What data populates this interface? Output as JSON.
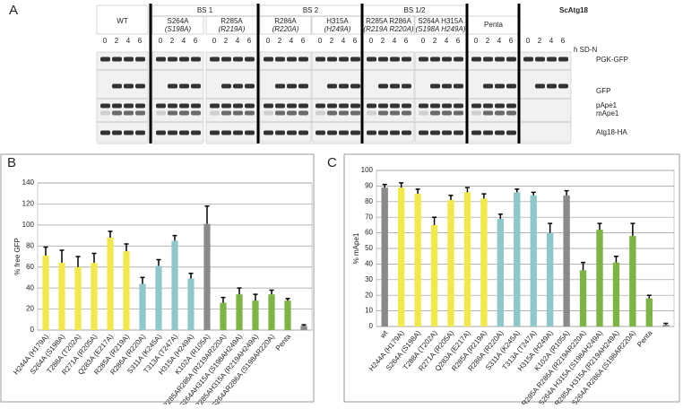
{
  "panels": {
    "a": "A",
    "b": "B",
    "c": "C"
  },
  "blot": {
    "groups": [
      {
        "label": "WT"
      },
      {
        "label": "S264A",
        "sublabel": "(S198A)"
      },
      {
        "label": "R285A",
        "sublabel": "(R219A)"
      },
      {
        "label": "R286A",
        "sublabel": "(R220A)"
      },
      {
        "label": "H315A",
        "sublabel": "(H249A)"
      },
      {
        "label": "R285A R286A",
        "sublabel": "(R219A R220A)"
      },
      {
        "label": "S264A H315A",
        "sublabel": "(S198A H249A)"
      },
      {
        "label": "Penta"
      }
    ],
    "sections": [
      "BS 1",
      "BS 2",
      "BS 1/2"
    ],
    "species": "ScAtg18",
    "lanes": [
      0,
      2,
      4,
      6
    ],
    "time_label": "h SD-N",
    "bands": [
      "PGK-GFP",
      "GFP",
      "pApe1",
      "mApe1",
      "Atg18-HA"
    ]
  },
  "chart_data": [
    {
      "type": "bar",
      "y_label": "% free GFP",
      "ylim": [
        0,
        140
      ],
      "yticks": [
        0,
        20,
        40,
        60,
        80,
        100,
        120,
        140
      ],
      "grid": true,
      "categories": [
        "H244A (H179A)",
        "S264A (S198A)",
        "T288A (T202A)",
        "R271A (R205A)",
        "Q283A (E217A)",
        "R285A (R219A)",
        "R286A (R220A)",
        "S311A (K245A)",
        "T313A (T247A)",
        "H315A (H249A)",
        "K102A (R105A)",
        "R285AR286A (R219AR220A)",
        "S264AH315A (S198AH249A)",
        "R285AH315A (R219AH249A)",
        "S264AR286A (S198AR220A)",
        "Penta",
        null
      ],
      "values": [
        71,
        64,
        60,
        64,
        88,
        75,
        44,
        61,
        85,
        49,
        101,
        26,
        34,
        28,
        34,
        28,
        4
      ],
      "errors": [
        8,
        12,
        10,
        9,
        6,
        7,
        6,
        6,
        5,
        5,
        17,
        5,
        6,
        6,
        4,
        2,
        1
      ],
      "colors": [
        "#f1e94c",
        "#f1e94c",
        "#f1e94c",
        "#f1e94c",
        "#f1e94c",
        "#f1e94c",
        "#8ec8cb",
        "#8ec8cb",
        "#8ec8cb",
        "#8ec8cb",
        "#8a8a8a",
        "#7db544",
        "#7db544",
        "#7db544",
        "#7db544",
        "#7db544",
        "#8a8a8a"
      ]
    },
    {
      "type": "bar",
      "y_label": "% mApe1",
      "ylim": [
        0,
        100
      ],
      "yticks": [
        0,
        10,
        20,
        30,
        40,
        50,
        60,
        70,
        80,
        90,
        100
      ],
      "grid": true,
      "categories": [
        "wt",
        "H244A (H179A)",
        "S264A (S198A)",
        "T288A (T202A)",
        "R271A (R205A)",
        "Q283A (E217A)",
        "R285A (R219A)",
        "R286A (R220A)",
        "S311A (K245A)",
        "T313A (T247A)",
        "H315A (H249A)",
        "K102A (R105A)",
        "R285A R286A (R219AR220A)",
        "S264A H315A (S198AH249A)",
        "R285A H315A (R219AH249A)",
        "S264A R286A (S198AR220A)",
        "Penta",
        null
      ],
      "values": [
        89,
        89,
        85,
        65,
        81,
        86,
        82,
        69,
        86,
        84,
        60,
        84,
        36,
        62,
        41,
        58,
        18,
        1
      ],
      "errors": [
        2,
        3,
        3,
        5,
        3,
        3,
        3,
        3,
        2,
        2,
        6,
        3,
        5,
        4,
        4,
        8,
        2,
        1
      ],
      "colors": [
        "#8a8a8a",
        "#f1e94c",
        "#f1e94c",
        "#f1e94c",
        "#f1e94c",
        "#f1e94c",
        "#f1e94c",
        "#8ec8cb",
        "#8ec8cb",
        "#8ec8cb",
        "#8ec8cb",
        "#8a8a8a",
        "#7db544",
        "#7db544",
        "#7db544",
        "#7db544",
        "#7db544",
        "#8a8a8a"
      ]
    }
  ]
}
